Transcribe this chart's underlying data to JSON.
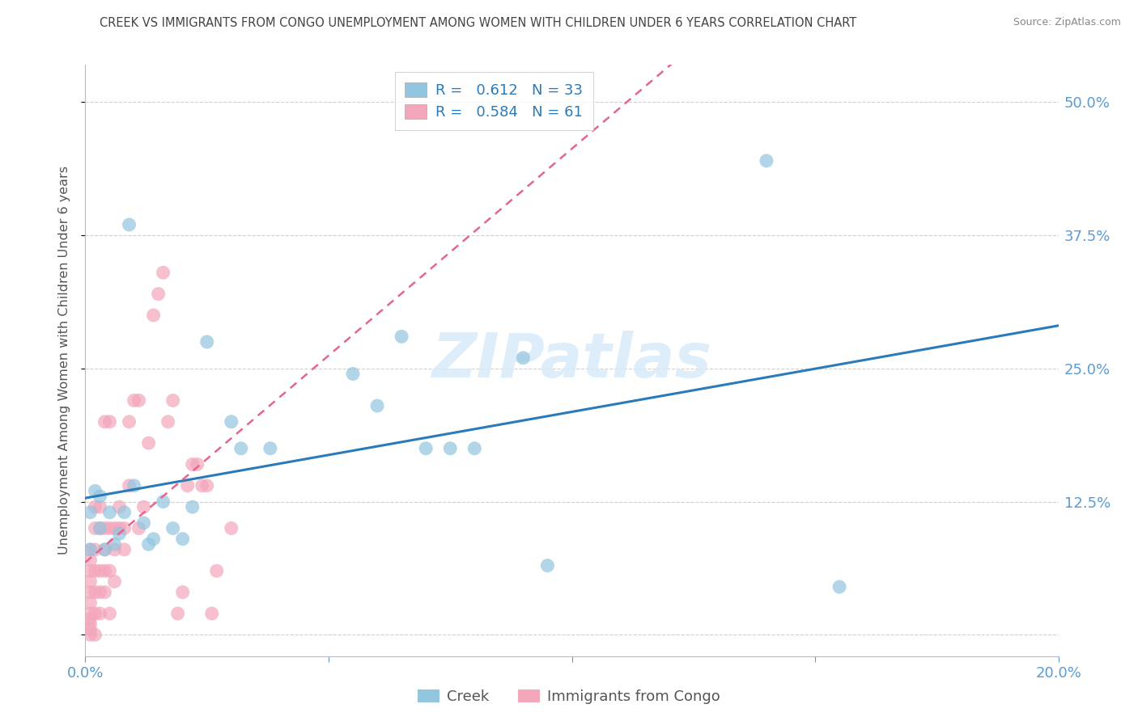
{
  "title": "CREEK VS IMMIGRANTS FROM CONGO UNEMPLOYMENT AMONG WOMEN WITH CHILDREN UNDER 6 YEARS CORRELATION CHART",
  "source": "Source: ZipAtlas.com",
  "ylabel": "Unemployment Among Women with Children Under 6 years",
  "watermark": "ZIPatlas",
  "xlim": [
    0.0,
    0.2
  ],
  "ylim": [
    -0.02,
    0.535
  ],
  "yticks": [
    0.0,
    0.125,
    0.25,
    0.375,
    0.5
  ],
  "xticks": [
    0.0,
    0.05,
    0.1,
    0.15,
    0.2
  ],
  "creek_R": 0.612,
  "creek_N": 33,
  "congo_R": 0.584,
  "congo_N": 61,
  "creek_color": "#92c5de",
  "congo_color": "#f4a6bb",
  "creek_line_color": "#2b7bba",
  "congo_line_color": "#e8638e",
  "legend_value_color": "#2b7bba",
  "title_color": "#555555",
  "axis_color": "#5b9bd5",
  "creek_x": [
    0.001,
    0.001,
    0.002,
    0.003,
    0.003,
    0.004,
    0.005,
    0.006,
    0.007,
    0.008,
    0.009,
    0.01,
    0.012,
    0.013,
    0.014,
    0.016,
    0.018,
    0.02,
    0.022,
    0.025,
    0.03,
    0.032,
    0.038,
    0.055,
    0.06,
    0.065,
    0.07,
    0.075,
    0.08,
    0.09,
    0.095,
    0.14,
    0.155
  ],
  "creek_y": [
    0.08,
    0.115,
    0.135,
    0.1,
    0.13,
    0.08,
    0.115,
    0.085,
    0.095,
    0.115,
    0.385,
    0.14,
    0.105,
    0.085,
    0.09,
    0.125,
    0.1,
    0.09,
    0.12,
    0.275,
    0.2,
    0.175,
    0.175,
    0.245,
    0.215,
    0.28,
    0.175,
    0.175,
    0.175,
    0.26,
    0.065,
    0.445,
    0.045
  ],
  "congo_x": [
    0.001,
    0.001,
    0.001,
    0.001,
    0.001,
    0.001,
    0.001,
    0.001,
    0.001,
    0.001,
    0.001,
    0.002,
    0.002,
    0.002,
    0.002,
    0.002,
    0.002,
    0.002,
    0.003,
    0.003,
    0.003,
    0.003,
    0.003,
    0.004,
    0.004,
    0.004,
    0.004,
    0.004,
    0.005,
    0.005,
    0.005,
    0.005,
    0.006,
    0.006,
    0.006,
    0.007,
    0.007,
    0.008,
    0.008,
    0.009,
    0.009,
    0.01,
    0.011,
    0.011,
    0.012,
    0.013,
    0.014,
    0.015,
    0.016,
    0.017,
    0.018,
    0.019,
    0.02,
    0.021,
    0.022,
    0.023,
    0.024,
    0.025,
    0.026,
    0.027,
    0.03
  ],
  "congo_y": [
    0.0,
    0.005,
    0.01,
    0.015,
    0.02,
    0.03,
    0.04,
    0.05,
    0.06,
    0.07,
    0.08,
    0.0,
    0.02,
    0.04,
    0.06,
    0.08,
    0.1,
    0.12,
    0.02,
    0.04,
    0.06,
    0.1,
    0.12,
    0.04,
    0.06,
    0.08,
    0.1,
    0.2,
    0.02,
    0.06,
    0.1,
    0.2,
    0.05,
    0.08,
    0.1,
    0.1,
    0.12,
    0.08,
    0.1,
    0.14,
    0.2,
    0.22,
    0.1,
    0.22,
    0.12,
    0.18,
    0.3,
    0.32,
    0.34,
    0.2,
    0.22,
    0.02,
    0.04,
    0.14,
    0.16,
    0.16,
    0.14,
    0.14,
    0.02,
    0.06,
    0.1
  ]
}
